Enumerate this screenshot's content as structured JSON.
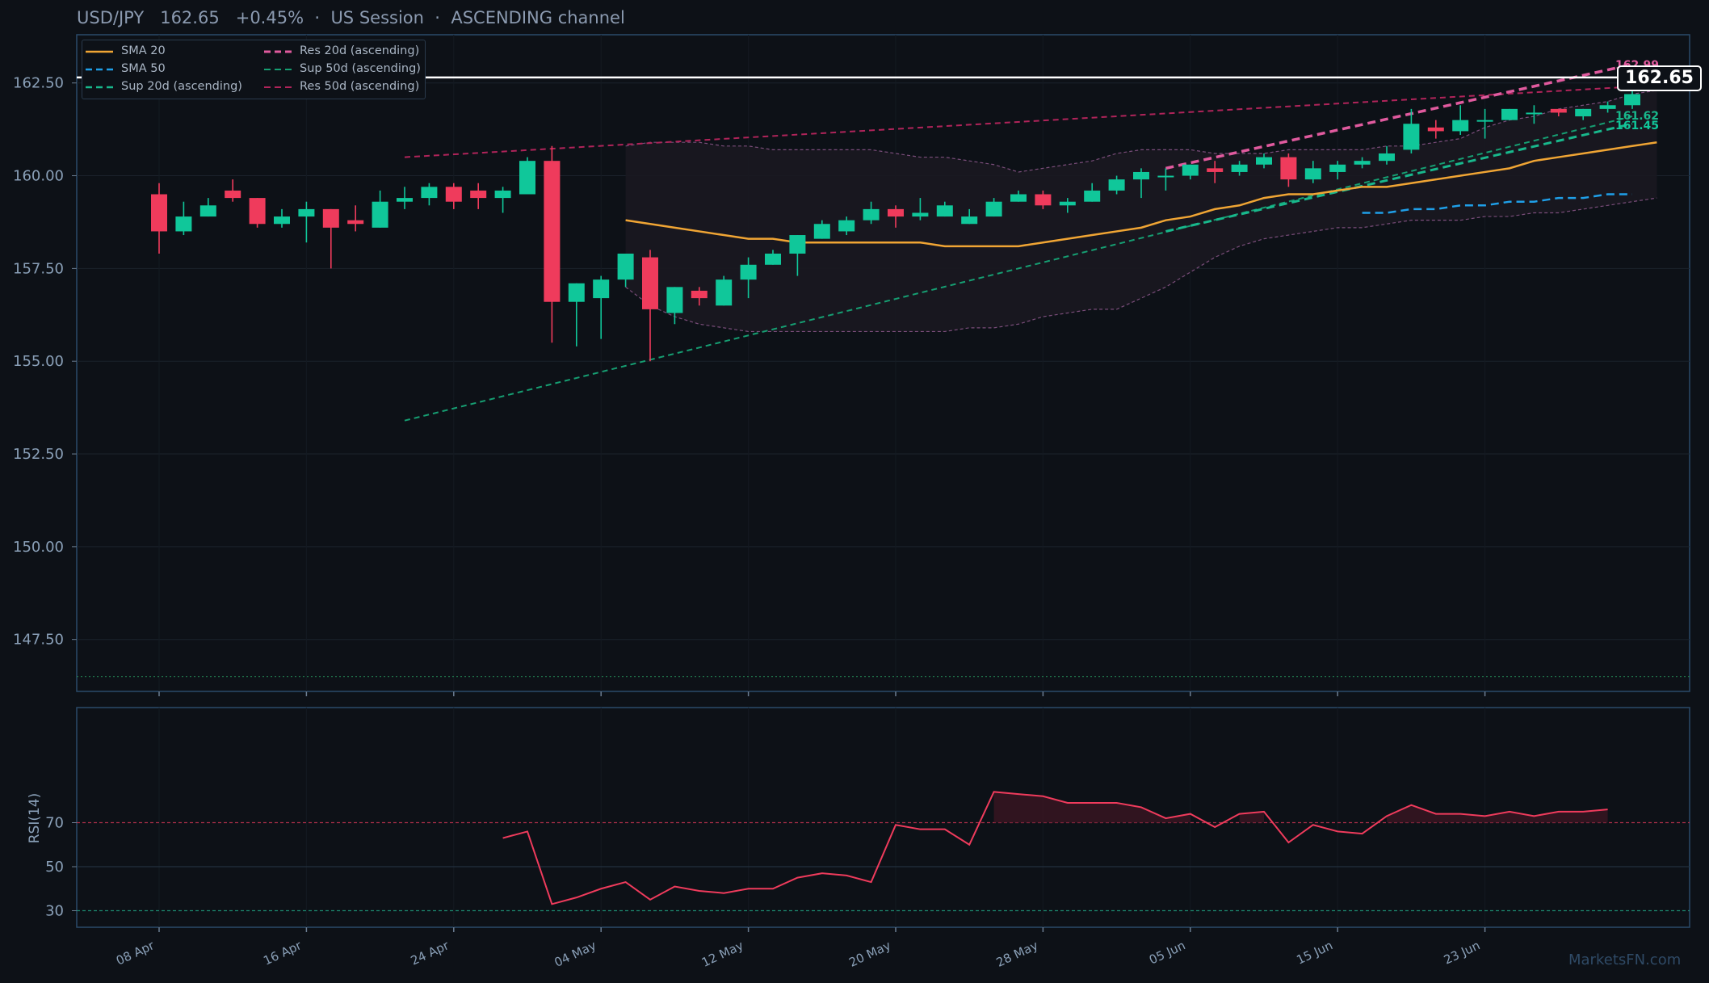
{
  "header": {
    "pair": "USD/JPY",
    "price": "162.65",
    "change": "+0.45%",
    "session": "US Session",
    "channel": "ASCENDING channel",
    "sep": "·"
  },
  "colors": {
    "bg": "#0d1117",
    "up": "#10c79a",
    "down": "#ef3b5c",
    "sma20": "#f0a534",
    "sma50": "#1f9fe8",
    "res20": "#e05a9e",
    "sup20": "#18b88c",
    "sup50": "#169e72",
    "res50": "#b0245a",
    "rsi": "#ef3b5c",
    "band": "#7a4d7a",
    "last": "#ffffff"
  },
  "legend": [
    {
      "label": "SMA 20",
      "color": "#f0a534",
      "dash": "none"
    },
    {
      "label": "SMA 50",
      "color": "#1f9fe8",
      "dash": "8,5"
    },
    {
      "label": "Sup 20d (ascending)",
      "color": "#18b88c",
      "dash": "8,5"
    },
    {
      "label": "Res 20d (ascending)",
      "color": "#e05a9e",
      "dash": "8,5"
    },
    {
      "label": "Sup 50d (ascending)",
      "color": "#169e72",
      "dash": "8,5"
    },
    {
      "label": "Res 50d (ascending)",
      "color": "#b0245a",
      "dash": "8,5"
    }
  ],
  "last_price_tag": "162.65",
  "right_labels": [
    {
      "text": "162.99",
      "value": 162.99,
      "color": "#e05a9e"
    },
    {
      "text": "161.62",
      "value": 161.62,
      "color": "#18b88c"
    },
    {
      "text": "161.45",
      "value": 161.45,
      "color": "#10c79a"
    }
  ],
  "watermark": "MarketsFN.com",
  "chart_data": {
    "type": "candlestick",
    "title": "USD/JPY   162.65   +0.45%  ·  US Session  ·  ASCENDING channel",
    "y_ticks": [
      "147.50",
      "150.00",
      "152.50",
      "155.00",
      "157.50",
      "160.00",
      "162.50"
    ],
    "ylim": [
      146.1,
      163.8
    ],
    "x_ticks": [
      {
        "label": "08 Apr",
        "i": 0
      },
      {
        "label": "16 Apr",
        "i": 6
      },
      {
        "label": "24 Apr",
        "i": 12
      },
      {
        "label": "04 May",
        "i": 18
      },
      {
        "label": "12 May",
        "i": 24
      },
      {
        "label": "20 May",
        "i": 30
      },
      {
        "label": "28 May",
        "i": 36
      },
      {
        "label": "05 Jun",
        "i": 42
      },
      {
        "label": "15 Jun",
        "i": 48
      },
      {
        "label": "23 Jun",
        "i": 54
      }
    ],
    "candles": [
      [
        159.5,
        159.8,
        157.9,
        158.5
      ],
      [
        158.5,
        159.3,
        158.4,
        158.9
      ],
      [
        158.9,
        159.4,
        158.9,
        159.2
      ],
      [
        159.6,
        159.9,
        159.3,
        159.4
      ],
      [
        159.4,
        159.4,
        158.6,
        158.7
      ],
      [
        158.7,
        159.1,
        158.6,
        158.9
      ],
      [
        158.9,
        159.3,
        158.2,
        159.1
      ],
      [
        159.1,
        159.1,
        157.5,
        158.6
      ],
      [
        158.8,
        159.2,
        158.5,
        158.7
      ],
      [
        158.6,
        159.6,
        158.6,
        159.3
      ],
      [
        159.3,
        159.7,
        159.1,
        159.4
      ],
      [
        159.4,
        159.8,
        159.2,
        159.7
      ],
      [
        159.7,
        159.8,
        159.1,
        159.3
      ],
      [
        159.6,
        159.8,
        159.1,
        159.4
      ],
      [
        159.4,
        159.7,
        159.0,
        159.6
      ],
      [
        159.5,
        160.5,
        159.5,
        160.4
      ],
      [
        160.4,
        160.8,
        155.5,
        156.6
      ],
      [
        156.6,
        157.1,
        155.4,
        157.1
      ],
      [
        156.7,
        157.3,
        155.6,
        157.2
      ],
      [
        157.2,
        157.9,
        157.0,
        157.9
      ],
      [
        157.8,
        158.0,
        155.0,
        156.4
      ],
      [
        156.3,
        157.0,
        156.0,
        157.0
      ],
      [
        156.9,
        157.0,
        156.5,
        156.7
      ],
      [
        156.5,
        157.3,
        156.5,
        157.2
      ],
      [
        157.2,
        157.8,
        156.7,
        157.6
      ],
      [
        157.6,
        158.0,
        157.6,
        157.9
      ],
      [
        157.9,
        158.4,
        157.3,
        158.4
      ],
      [
        158.3,
        158.8,
        158.3,
        158.7
      ],
      [
        158.5,
        158.9,
        158.4,
        158.8
      ],
      [
        158.8,
        159.3,
        158.7,
        159.1
      ],
      [
        159.1,
        159.2,
        158.6,
        158.9
      ],
      [
        158.9,
        159.4,
        158.8,
        159.0
      ],
      [
        158.9,
        159.3,
        158.9,
        159.2
      ],
      [
        158.7,
        159.1,
        158.7,
        158.9
      ],
      [
        158.9,
        159.4,
        158.9,
        159.3
      ],
      [
        159.3,
        159.6,
        159.3,
        159.5
      ],
      [
        159.5,
        159.6,
        159.1,
        159.2
      ],
      [
        159.2,
        159.4,
        159.0,
        159.3
      ],
      [
        159.3,
        159.8,
        159.3,
        159.6
      ],
      [
        159.6,
        160.0,
        159.5,
        159.9
      ],
      [
        159.9,
        160.2,
        159.4,
        160.1
      ],
      [
        160.0,
        160.2,
        159.6,
        160.0
      ],
      [
        160.0,
        160.3,
        159.9,
        160.3
      ],
      [
        160.2,
        160.4,
        159.8,
        160.1
      ],
      [
        160.1,
        160.4,
        160.0,
        160.3
      ],
      [
        160.3,
        160.6,
        160.2,
        160.5
      ],
      [
        160.5,
        160.6,
        159.7,
        159.9
      ],
      [
        159.9,
        160.4,
        159.8,
        160.2
      ],
      [
        160.1,
        160.4,
        159.9,
        160.3
      ],
      [
        160.3,
        160.5,
        160.2,
        160.4
      ],
      [
        160.4,
        160.8,
        160.3,
        160.6
      ],
      [
        160.7,
        161.8,
        160.6,
        161.4
      ],
      [
        161.3,
        161.5,
        161.0,
        161.2
      ],
      [
        161.2,
        161.9,
        161.1,
        161.5
      ],
      [
        161.5,
        161.8,
        161.0,
        161.5
      ],
      [
        161.5,
        161.8,
        161.5,
        161.8
      ],
      [
        161.7,
        161.9,
        161.4,
        161.7
      ],
      [
        161.8,
        161.8,
        161.6,
        161.7
      ],
      [
        161.6,
        161.8,
        161.5,
        161.8
      ],
      [
        161.8,
        162.0,
        161.7,
        161.9
      ],
      [
        161.9,
        162.4,
        161.8,
        162.2
      ]
    ],
    "series": [
      {
        "name": "SMA 20",
        "start": 19,
        "values": [
          158.8,
          158.7,
          158.6,
          158.5,
          158.4,
          158.3,
          158.3,
          158.2,
          158.2,
          158.2,
          158.2,
          158.2,
          158.2,
          158.1,
          158.1,
          158.1,
          158.1,
          158.2,
          158.3,
          158.4,
          158.5,
          158.6,
          158.8,
          158.9,
          159.1,
          159.2,
          159.4,
          159.5,
          159.5,
          159.6,
          159.7,
          159.7,
          159.8,
          159.9,
          160.0,
          160.1,
          160.2,
          160.4,
          160.5,
          160.6,
          160.7,
          160.8,
          160.9
        ]
      },
      {
        "name": "SMA 50",
        "start": 49,
        "values": [
          159.0,
          159.0,
          159.1,
          159.1,
          159.2,
          159.2,
          159.3,
          159.3,
          159.4,
          159.4,
          159.5,
          159.5
        ]
      }
    ],
    "trend_lines": [
      {
        "name": "Res 50d (ascending)",
        "from": [
          10,
          160.5
        ],
        "to": [
          60,
          162.4
        ]
      },
      {
        "name": "Sup 50d (ascending)",
        "from": [
          10,
          153.4
        ],
        "to": [
          60,
          161.6
        ]
      },
      {
        "name": "Res 20d (ascending)",
        "from": [
          41,
          160.2
        ],
        "to": [
          60,
          163.0
        ]
      },
      {
        "name": "Sup 20d (ascending)",
        "from": [
          41,
          158.5
        ],
        "to": [
          60,
          161.4
        ]
      }
    ],
    "bands": {
      "start": 19,
      "upper": [
        160.8,
        160.9,
        160.9,
        160.9,
        160.8,
        160.8,
        160.7,
        160.7,
        160.7,
        160.7,
        160.7,
        160.6,
        160.5,
        160.5,
        160.4,
        160.3,
        160.1,
        160.2,
        160.3,
        160.4,
        160.6,
        160.7,
        160.7,
        160.7,
        160.6,
        160.6,
        160.6,
        160.7,
        160.7,
        160.7,
        160.7,
        160.8,
        160.8,
        160.9,
        161.0,
        161.3,
        161.5,
        161.6,
        161.8,
        161.9,
        162.0,
        162.2,
        162.3
      ],
      "lower": [
        157.0,
        156.5,
        156.2,
        156.0,
        155.9,
        155.8,
        155.8,
        155.8,
        155.8,
        155.8,
        155.8,
        155.8,
        155.8,
        155.8,
        155.9,
        155.9,
        156.0,
        156.2,
        156.3,
        156.4,
        156.4,
        156.7,
        157.0,
        157.4,
        157.8,
        158.1,
        158.3,
        158.4,
        158.5,
        158.6,
        158.6,
        158.7,
        158.8,
        158.8,
        158.8,
        158.9,
        158.9,
        159.0,
        159.0,
        159.1,
        159.2,
        159.3,
        159.4
      ]
    },
    "last_price": 162.65,
    "floor_line": 146.5,
    "rsi": {
      "label": "RSI(14)",
      "ticks": [
        "30",
        "50",
        "70"
      ],
      "ylim": [
        0,
        100
      ],
      "start": 14,
      "values": [
        63,
        66,
        33,
        36,
        40,
        43,
        35,
        41,
        39,
        38,
        40,
        40,
        45,
        47,
        46,
        43,
        69,
        67,
        67,
        60,
        84,
        83,
        82,
        79,
        79,
        79,
        77,
        72,
        74,
        68,
        74,
        75,
        61,
        69,
        66,
        65,
        73,
        78,
        74,
        74,
        73,
        75,
        73,
        75,
        75,
        76
      ]
    }
  }
}
